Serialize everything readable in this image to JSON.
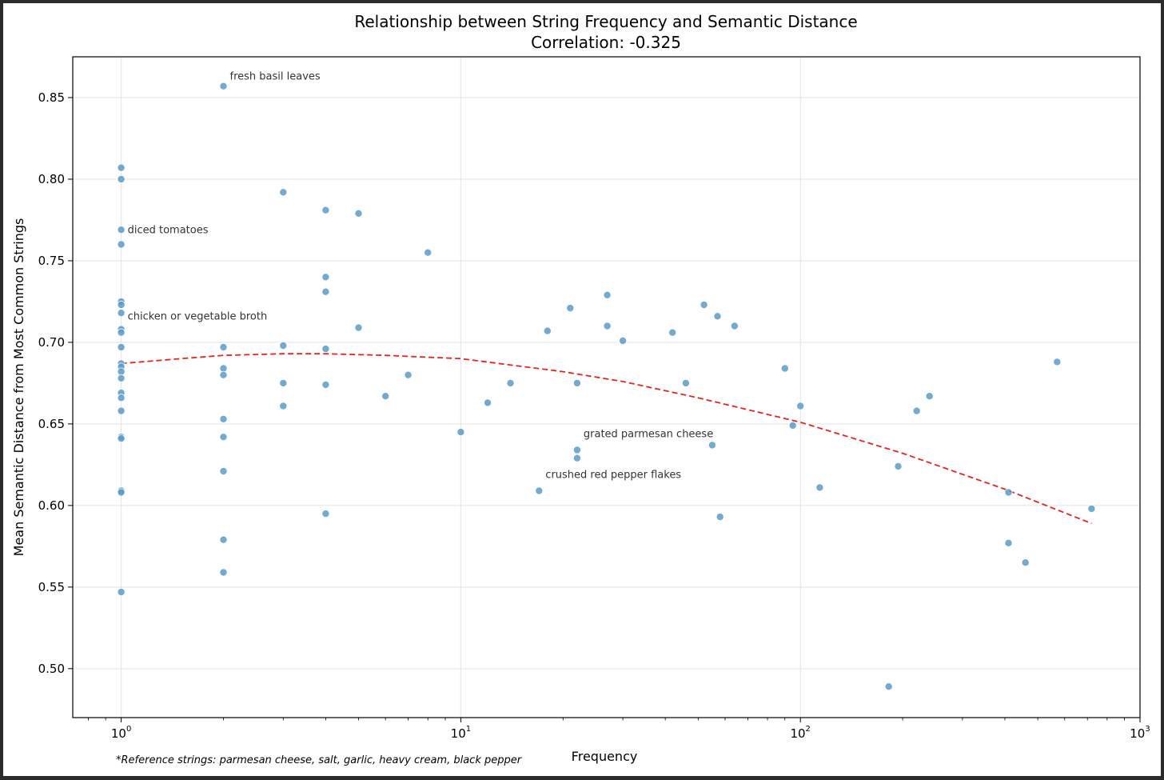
{
  "chart_data": {
    "type": "scatter",
    "title": "Relationship between String Frequency and Semantic Distance",
    "subtitle": "Correlation: -0.325",
    "xlabel": "Frequency",
    "ylabel": "Mean Semantic Distance from Most Common Strings",
    "xscale": "log",
    "xlim": [
      0.72,
      1000
    ],
    "ylim": [
      0.47,
      0.875
    ],
    "grid": true,
    "x_major_ticks": [
      {
        "value": 1,
        "base": "10",
        "exp": "0"
      },
      {
        "value": 10,
        "base": "10",
        "exp": "1"
      },
      {
        "value": 100,
        "base": "10",
        "exp": "2"
      },
      {
        "value": 1000,
        "base": "10",
        "exp": "3"
      }
    ],
    "y_ticks": [
      {
        "value": 0.5,
        "label": "0.50"
      },
      {
        "value": 0.55,
        "label": "0.55"
      },
      {
        "value": 0.6,
        "label": "0.60"
      },
      {
        "value": 0.65,
        "label": "0.65"
      },
      {
        "value": 0.7,
        "label": "0.70"
      },
      {
        "value": 0.75,
        "label": "0.75"
      },
      {
        "value": 0.8,
        "label": "0.80"
      },
      {
        "value": 0.85,
        "label": "0.85"
      }
    ],
    "point_color": "#5b9bc8",
    "trend_color": "#e8231e",
    "points": [
      {
        "x": 1,
        "y": 0.807
      },
      {
        "x": 1,
        "y": 0.8
      },
      {
        "x": 1,
        "y": 0.769
      },
      {
        "x": 1,
        "y": 0.76
      },
      {
        "x": 1,
        "y": 0.725
      },
      {
        "x": 1,
        "y": 0.723
      },
      {
        "x": 1,
        "y": 0.718
      },
      {
        "x": 1,
        "y": 0.708
      },
      {
        "x": 1,
        "y": 0.706
      },
      {
        "x": 1,
        "y": 0.697
      },
      {
        "x": 1,
        "y": 0.687
      },
      {
        "x": 1,
        "y": 0.685
      },
      {
        "x": 1,
        "y": 0.682
      },
      {
        "x": 1,
        "y": 0.678
      },
      {
        "x": 1,
        "y": 0.669
      },
      {
        "x": 1,
        "y": 0.666
      },
      {
        "x": 1,
        "y": 0.658
      },
      {
        "x": 1,
        "y": 0.642
      },
      {
        "x": 1,
        "y": 0.641
      },
      {
        "x": 1,
        "y": 0.609
      },
      {
        "x": 1,
        "y": 0.608
      },
      {
        "x": 1,
        "y": 0.547
      },
      {
        "x": 2,
        "y": 0.857
      },
      {
        "x": 2,
        "y": 0.697
      },
      {
        "x": 2,
        "y": 0.684
      },
      {
        "x": 2,
        "y": 0.68
      },
      {
        "x": 2,
        "y": 0.653
      },
      {
        "x": 2,
        "y": 0.642
      },
      {
        "x": 2,
        "y": 0.621
      },
      {
        "x": 2,
        "y": 0.579
      },
      {
        "x": 2,
        "y": 0.559
      },
      {
        "x": 3,
        "y": 0.792
      },
      {
        "x": 3,
        "y": 0.698
      },
      {
        "x": 3,
        "y": 0.675
      },
      {
        "x": 3,
        "y": 0.661
      },
      {
        "x": 4,
        "y": 0.781
      },
      {
        "x": 4,
        "y": 0.74
      },
      {
        "x": 4,
        "y": 0.731
      },
      {
        "x": 4,
        "y": 0.696
      },
      {
        "x": 4,
        "y": 0.674
      },
      {
        "x": 4,
        "y": 0.595
      },
      {
        "x": 5,
        "y": 0.779
      },
      {
        "x": 5,
        "y": 0.709
      },
      {
        "x": 6,
        "y": 0.667
      },
      {
        "x": 7,
        "y": 0.68
      },
      {
        "x": 8,
        "y": 0.755
      },
      {
        "x": 10,
        "y": 0.645
      },
      {
        "x": 12,
        "y": 0.663
      },
      {
        "x": 14,
        "y": 0.675
      },
      {
        "x": 17,
        "y": 0.609
      },
      {
        "x": 18,
        "y": 0.707
      },
      {
        "x": 21,
        "y": 0.721
      },
      {
        "x": 22,
        "y": 0.675
      },
      {
        "x": 22,
        "y": 0.634
      },
      {
        "x": 22,
        "y": 0.629
      },
      {
        "x": 27,
        "y": 0.729
      },
      {
        "x": 27,
        "y": 0.71
      },
      {
        "x": 30,
        "y": 0.701
      },
      {
        "x": 42,
        "y": 0.706
      },
      {
        "x": 46,
        "y": 0.675
      },
      {
        "x": 52,
        "y": 0.723
      },
      {
        "x": 55,
        "y": 0.637
      },
      {
        "x": 57,
        "y": 0.716
      },
      {
        "x": 58,
        "y": 0.593
      },
      {
        "x": 64,
        "y": 0.71
      },
      {
        "x": 90,
        "y": 0.684
      },
      {
        "x": 95,
        "y": 0.649
      },
      {
        "x": 100,
        "y": 0.661
      },
      {
        "x": 114,
        "y": 0.611
      },
      {
        "x": 182,
        "y": 0.489
      },
      {
        "x": 194,
        "y": 0.624
      },
      {
        "x": 220,
        "y": 0.658
      },
      {
        "x": 240,
        "y": 0.667
      },
      {
        "x": 410,
        "y": 0.608
      },
      {
        "x": 410,
        "y": 0.577
      },
      {
        "x": 460,
        "y": 0.565
      },
      {
        "x": 570,
        "y": 0.688
      },
      {
        "x": 720,
        "y": 0.598
      }
    ],
    "trend": [
      {
        "x": 1,
        "y": 0.687
      },
      {
        "x": 1.5,
        "y": 0.69
      },
      {
        "x": 2,
        "y": 0.692
      },
      {
        "x": 3,
        "y": 0.693
      },
      {
        "x": 4,
        "y": 0.693
      },
      {
        "x": 6,
        "y": 0.692
      },
      {
        "x": 10,
        "y": 0.69
      },
      {
        "x": 20,
        "y": 0.682
      },
      {
        "x": 30,
        "y": 0.676
      },
      {
        "x": 50,
        "y": 0.666
      },
      {
        "x": 100,
        "y": 0.651
      },
      {
        "x": 200,
        "y": 0.632
      },
      {
        "x": 400,
        "y": 0.61
      },
      {
        "x": 720,
        "y": 0.589
      }
    ],
    "annotations": [
      {
        "text": "fresh basil leaves",
        "x": 2,
        "y": 0.857
      },
      {
        "text": "diced tomatoes",
        "x": 1,
        "y": 0.763
      },
      {
        "text": "chicken or vegetable broth",
        "x": 1,
        "y": 0.71
      },
      {
        "text": "grated parmesan cheese",
        "x": 22,
        "y": 0.638
      },
      {
        "text": "crushed red pepper flakes",
        "x": 17,
        "y": 0.613
      }
    ],
    "footnote": "*Reference strings: parmesan cheese, salt, garlic, heavy cream, black pepper"
  }
}
